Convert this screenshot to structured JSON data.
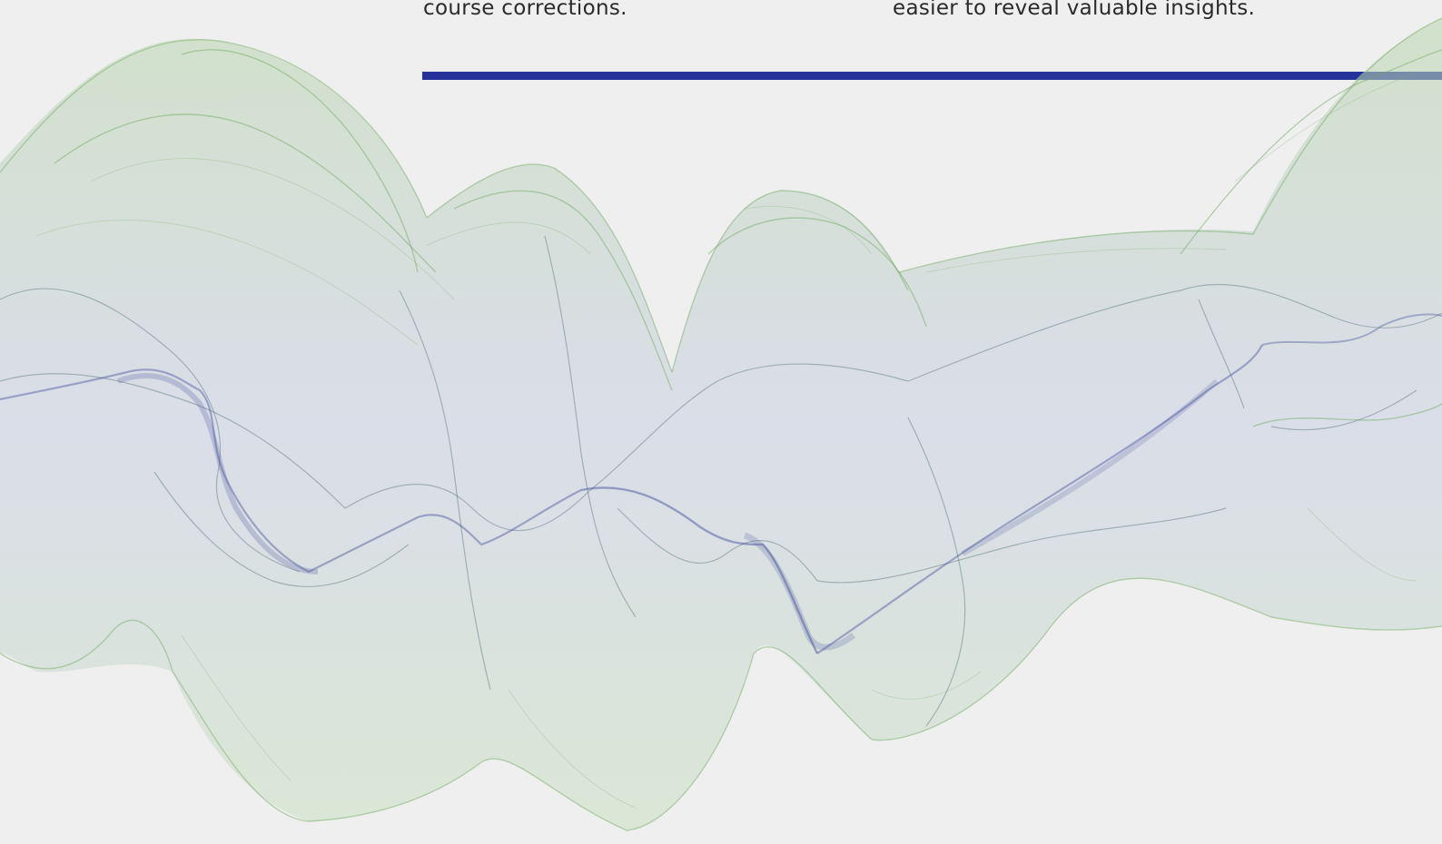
{
  "content": {
    "left_text": "course corrections.",
    "right_text": "easier to reveal valuable insights."
  },
  "colors": {
    "background": "#efefef",
    "divider": "#24329a",
    "text": "#2a2a2a",
    "ribbon_green": "#6fa85e",
    "ribbon_blue": "#4a55a0",
    "ribbon_dark": "#3f6066"
  }
}
